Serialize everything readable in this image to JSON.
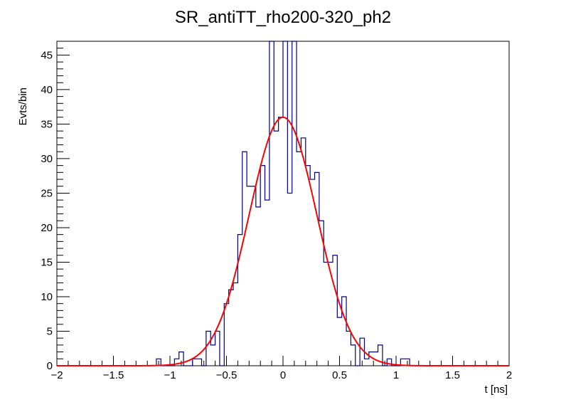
{
  "chart_data": {
    "type": "histogram",
    "title": "SR_antiTT_rho200-320_ph2",
    "xlabel": "t [ns]",
    "ylabel": "Evts/bin",
    "xlim": [
      -2,
      2
    ],
    "ylim": [
      0,
      47
    ],
    "grid": false,
    "x_ticks": [
      "−2",
      "−1.5",
      "−1",
      "−0.5",
      "0",
      "0.5",
      "1",
      "1.5",
      "2"
    ],
    "y_ticks": [
      "0",
      "5",
      "10",
      "15",
      "20",
      "25",
      "30",
      "35",
      "40",
      "45"
    ],
    "bin_width": 0.04,
    "bins_x_low": [
      -1.12,
      -1.08,
      -1.04,
      -1.0,
      -0.96,
      -0.92,
      -0.88,
      -0.84,
      -0.8,
      -0.76,
      -0.72,
      -0.68,
      -0.64,
      -0.6,
      -0.56,
      -0.52,
      -0.48,
      -0.44,
      -0.4,
      -0.36,
      -0.32,
      -0.28,
      -0.24,
      -0.2,
      -0.16,
      -0.12,
      -0.08,
      -0.04,
      0.0,
      0.04,
      0.08,
      0.12,
      0.16,
      0.2,
      0.24,
      0.28,
      0.32,
      0.36,
      0.4,
      0.44,
      0.48,
      0.52,
      0.56,
      0.6,
      0.64,
      0.68,
      0.72,
      0.76,
      0.8,
      0.84,
      0.88,
      0.92,
      0.96,
      1.0,
      1.04,
      1.08,
      1.12
    ],
    "bin_counts": [
      1,
      0,
      0,
      0,
      1,
      2,
      0,
      0,
      1,
      1,
      0,
      5,
      3,
      5,
      0,
      9,
      11,
      12,
      19,
      31,
      26,
      26,
      23,
      29,
      24,
      47,
      34,
      36,
      47,
      25,
      47,
      31,
      33,
      29,
      27,
      28,
      21,
      15,
      15,
      16,
      7,
      10,
      5,
      3,
      0,
      4,
      1,
      2,
      2,
      3,
      0,
      1,
      0,
      0,
      1,
      1,
      0
    ],
    "series": [
      {
        "name": "",
        "type": "histogram",
        "color": "#000080"
      },
      {
        "name": "",
        "type": "gaussian-fit",
        "color": "#ff0000",
        "amplitude": 36,
        "mean": 0.0,
        "sigma": 0.3
      }
    ]
  }
}
